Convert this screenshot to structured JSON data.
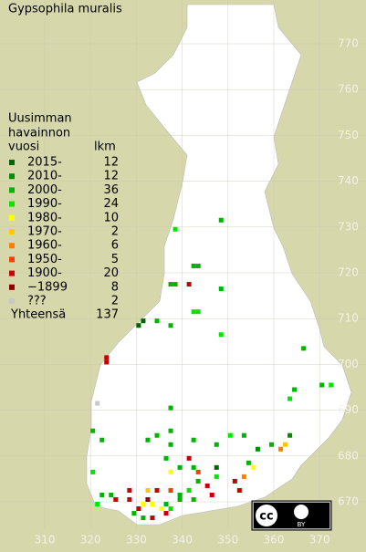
{
  "map": {
    "title": "Gypsophila muralis",
    "legend": {
      "header": [
        "Uusimman",
        "havainnon",
        "vuosi"
      ],
      "count_header": "lkm",
      "items": [
        {
          "label": "2015-",
          "color": "#006400",
          "count": 12,
          "squares": [
            [
              331,
              709
            ],
            [
              330,
              708
            ],
            [
              347,
              677
            ]
          ]
        },
        {
          "label": "2010-",
          "color": "#008c00",
          "count": 12,
          "squares": [
            [
              356,
              681
            ],
            [
              363,
              684
            ]
          ]
        },
        {
          "label": "2000-",
          "color": "#00b400",
          "count": 36,
          "squares": [
            [
              348,
              731
            ],
            [
              342,
              721
            ],
            [
              343,
              721
            ],
            [
              337,
              717
            ],
            [
              338,
              717
            ],
            [
              348,
              716
            ],
            [
              334,
              709
            ],
            [
              337,
              708
            ],
            [
              366,
              703
            ],
            [
              370,
              695
            ],
            [
              364,
              694
            ],
            [
              337,
              690
            ],
            [
              320,
              685
            ],
            [
              322,
              683
            ],
            [
              332,
              683
            ],
            [
              334,
              684
            ],
            [
              337,
              682
            ],
            [
              342,
              683
            ],
            [
              347,
              682
            ],
            [
              353,
              684
            ],
            [
              359,
              682
            ],
            [
              336,
              679
            ],
            [
              339,
              677
            ],
            [
              342,
              677
            ],
            [
              354,
              678
            ],
            [
              343,
              674
            ],
            [
              339,
              671
            ],
            [
              336,
              669
            ],
            [
              329,
              667
            ],
            [
              331,
              666
            ],
            [
              324,
              671
            ],
            [
              322,
              671
            ],
            [
              339,
              670
            ],
            [
              342,
              670
            ],
            [
              337,
              685
            ]
          ]
        },
        {
          "label": "1990-",
          "color": "#00e600",
          "count": 24,
          "squares": [
            [
              338,
              729
            ],
            [
              342,
              711
            ],
            [
              343,
              711
            ],
            [
              348,
              706
            ],
            [
              372,
              695
            ],
            [
              363,
              692
            ],
            [
              350,
              684
            ],
            [
              320,
              676
            ],
            [
              347,
              675
            ],
            [
              341,
              672
            ],
            [
              337,
              668
            ],
            [
              321,
              669
            ]
          ]
        },
        {
          "label": "1980-",
          "color": "#ffff00",
          "count": 10,
          "squares": [
            [
              337,
              676
            ],
            [
              355,
              677
            ],
            [
              331,
              669
            ],
            [
              333,
              669
            ],
            [
              335,
              668
            ]
          ]
        },
        {
          "label": "1970-",
          "color": "#ffc800",
          "count": 2,
          "squares": [
            [
              362,
              682
            ],
            [
              332,
              672
            ]
          ]
        },
        {
          "label": "1960-",
          "color": "#ff8000",
          "count": 6,
          "squares": [
            [
              361,
              681
            ],
            [
              353,
              675
            ]
          ]
        },
        {
          "label": "1950-",
          "color": "#ff3c00",
          "count": 5,
          "squares": [
            [
              337,
              672
            ],
            [
              343,
              676
            ]
          ]
        },
        {
          "label": "1900-",
          "color": "#c80000",
          "count": 20,
          "squares": [
            [
              341,
              717
            ],
            [
              323,
              701
            ],
            [
              323,
              700
            ],
            [
              341,
              679
            ],
            [
              351,
              674
            ],
            [
              352,
              672
            ],
            [
              345,
              673
            ],
            [
              346,
              671
            ],
            [
              334,
              672
            ],
            [
              330,
              668
            ],
            [
              333,
              666
            ],
            [
              336,
              667
            ],
            [
              325,
              670
            ],
            [
              328,
              670
            ],
            [
              328,
              672
            ]
          ]
        },
        {
          "label": "−1899",
          "color": "#8c0000",
          "count": 8,
          "squares": [
            [
              332,
              670
            ]
          ]
        },
        {
          "label": "???",
          "color": "#c8c8c8",
          "count": 2,
          "squares": [
            [
              321,
              691
            ]
          ]
        }
      ],
      "total_label": "Yhteensä",
      "total": 137
    },
    "xticks": [
      310,
      320,
      330,
      340,
      350,
      360,
      370
    ],
    "yticks": [
      670,
      680,
      690,
      700,
      710,
      720,
      730,
      740,
      750,
      760,
      770
    ],
    "license": {
      "cc": "cc",
      "by": "BY"
    }
  }
}
